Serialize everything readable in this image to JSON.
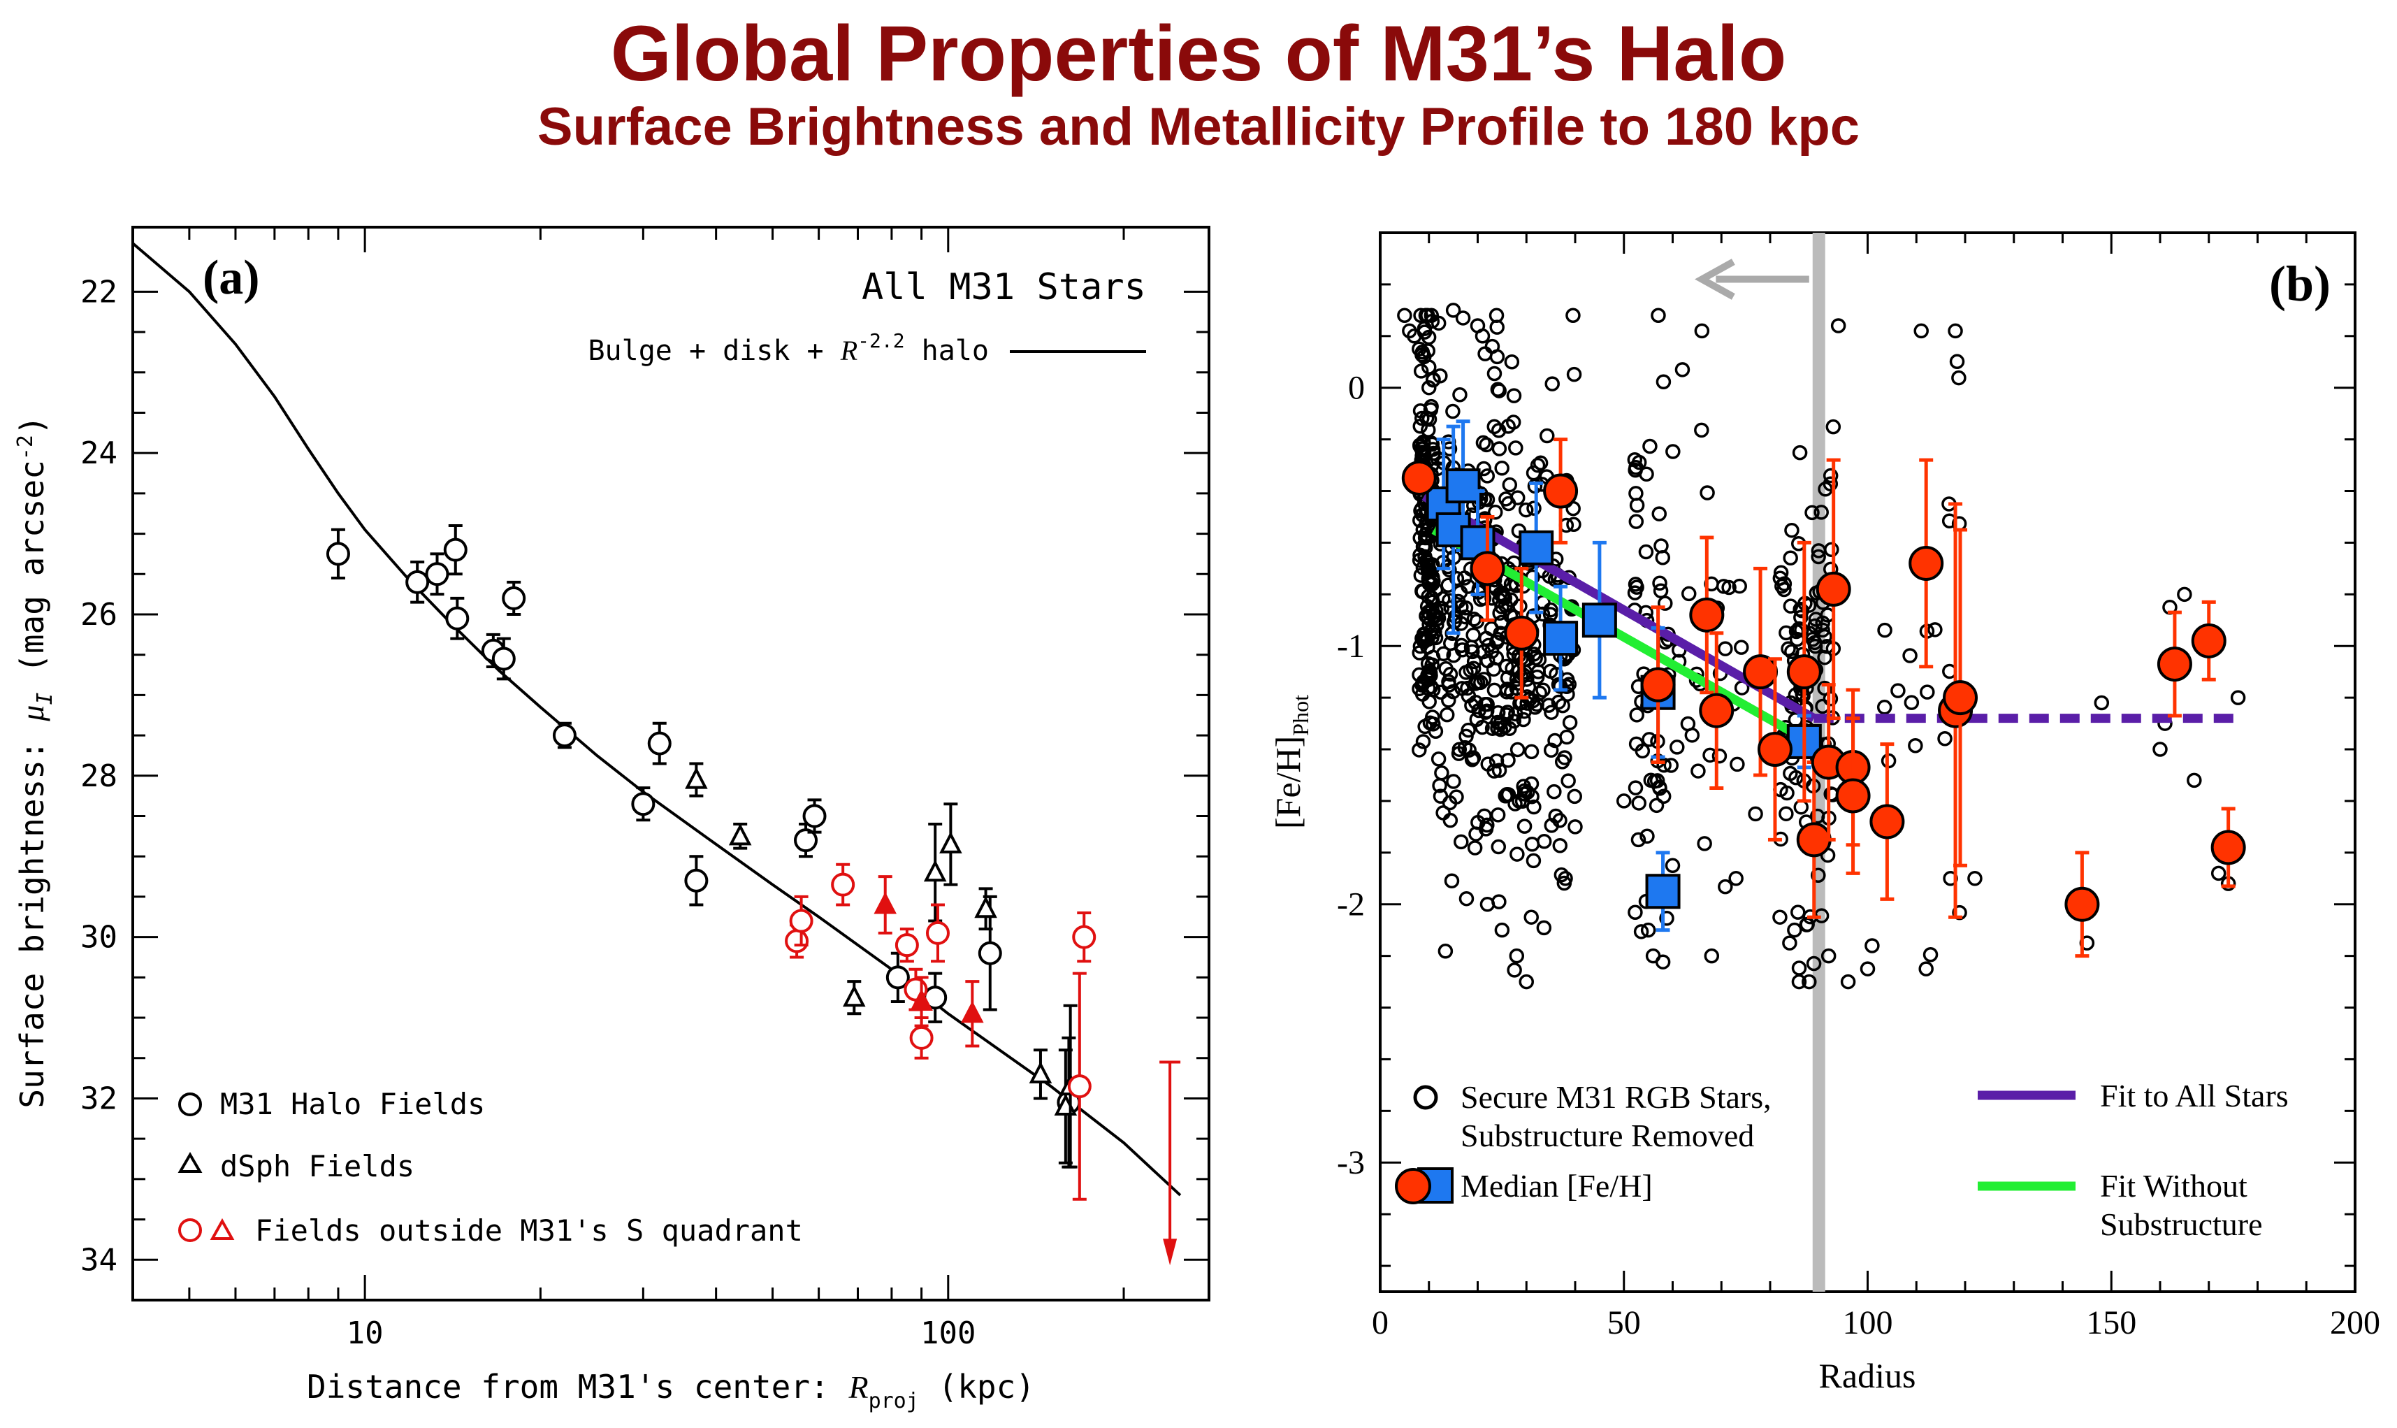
{
  "title": "Global Properties of M31’s Halo",
  "subtitle": "Surface Brightness and Metallicity  Profile to 180 kpc",
  "colors": {
    "title": "#8a0a0a",
    "black": "#000000",
    "red": "#e01010",
    "blue": "#1e78f0",
    "orange": "#ff3300",
    "purple": "#5a1ea8",
    "green": "#22ee33",
    "gray": "#bbbbbb"
  },
  "chart_data": [
    {
      "type": "scatter",
      "panel_label": "(a)",
      "annotation": "All M31 Stars",
      "model_label": "Bulge + disk + R^-2.2 halo",
      "model_label_parts": {
        "pre": "Bulge + disk + ",
        "r": "R",
        "exp": "-2.2",
        "post": " halo"
      },
      "xlabel": "Distance from M31's center: R_proj (kpc)",
      "xlabel_parts": {
        "pre": "Distance from M31's center: ",
        "r": "R",
        "sub": "proj",
        "post": " (kpc)"
      },
      "ylabel": "Surface brightness: μ_I (mag arcsec^-2)",
      "ylabel_parts": {
        "pre": "Surface brightness: ",
        "mu": "μ",
        "sub": "I",
        "post": " (mag arcsec",
        "sup": "-2",
        "end": ")"
      },
      "xscale": "log",
      "xlim": [
        4,
        280
      ],
      "ylim": [
        34.5,
        21.2
      ],
      "x_ticks": [
        10,
        100
      ],
      "x_tick_labels": [
        "10",
        "100"
      ],
      "y_ticks": [
        22,
        24,
        26,
        28,
        30,
        32,
        34
      ],
      "y_tick_labels": [
        "22",
        "24",
        "26",
        "28",
        "30",
        "32",
        "34"
      ],
      "legend": [
        {
          "label": "M31 Halo Fields",
          "marker": "circle",
          "color": "black"
        },
        {
          "label": "dSph Fields",
          "marker": "triangle",
          "color": "black"
        },
        {
          "label": "Fields outside M31's S quadrant",
          "marker": "circle+triangle",
          "color": "red"
        }
      ],
      "model_curve": [
        [
          4,
          21.4
        ],
        [
          5,
          22.0
        ],
        [
          6,
          22.65
        ],
        [
          7,
          23.3
        ],
        [
          8,
          23.95
        ],
        [
          9,
          24.5
        ],
        [
          10,
          24.95
        ],
        [
          12,
          25.6
        ],
        [
          14,
          26.1
        ],
        [
          17,
          26.7
        ],
        [
          20,
          27.15
        ],
        [
          25,
          27.75
        ],
        [
          30,
          28.2
        ],
        [
          40,
          28.85
        ],
        [
          50,
          29.35
        ],
        [
          60,
          29.75
        ],
        [
          80,
          30.4
        ],
        [
          100,
          30.95
        ],
        [
          150,
          31.85
        ],
        [
          200,
          32.55
        ],
        [
          250,
          33.2
        ]
      ],
      "series": [
        {
          "name": "M31 Halo Fields",
          "marker": "circle",
          "color": "black",
          "points": [
            [
              9,
              25.25,
              0.3
            ],
            [
              12.3,
              25.6,
              0.25
            ],
            [
              13.3,
              25.5,
              0.25
            ],
            [
              14.3,
              25.2,
              0.3
            ],
            [
              14.4,
              26.05,
              0.25
            ],
            [
              16.6,
              26.45,
              0.2
            ],
            [
              17.3,
              26.55,
              0.25
            ],
            [
              18.0,
              25.8,
              0.2
            ],
            [
              22.0,
              27.5,
              0.15
            ],
            [
              30,
              28.35,
              0.2
            ],
            [
              32,
              27.6,
              0.25
            ],
            [
              37,
              29.3,
              0.3
            ],
            [
              57,
              28.8,
              0.2
            ],
            [
              59,
              28.5,
              0.2
            ],
            [
              82,
              30.5,
              0.3
            ],
            [
              95,
              30.75,
              0.3
            ],
            [
              118,
              30.2,
              0.7
            ],
            [
              161,
              32.05,
              0.8
            ]
          ]
        },
        {
          "name": "dSph Fields",
          "marker": "triangle",
          "color": "black",
          "points": [
            [
              37,
              28.05,
              0.2
            ],
            [
              44,
              28.75,
              0.15
            ],
            [
              69,
              30.75,
              0.2
            ],
            [
              95,
              29.2,
              0.6
            ],
            [
              101,
              28.85,
              0.5
            ],
            [
              116,
              29.65,
              0.25
            ],
            [
              144,
              31.7,
              0.3
            ],
            [
              159,
              32.1,
              0.7
            ],
            [
              162,
              31.85,
              1.0
            ]
          ]
        },
        {
          "name": "Fields outside M31's S quadrant (circles)",
          "marker": "circle",
          "color": "red",
          "points": [
            [
              55,
              30.05,
              0.2
            ],
            [
              56,
              29.8,
              0.3
            ],
            [
              66,
              29.35,
              0.25
            ],
            [
              85,
              30.1,
              0.2
            ],
            [
              88,
              30.65,
              0.25
            ],
            [
              90,
              31.25,
              0.25
            ],
            [
              96,
              29.95,
              0.35
            ],
            [
              168,
              31.85,
              1.4
            ],
            [
              171,
              30.0,
              0.3
            ]
          ]
        },
        {
          "name": "Fields outside M31's S quadrant (triangles)",
          "marker": "triangle",
          "color": "red",
          "points": [
            [
              78,
              29.6,
              0.35
            ],
            [
              90,
              30.8,
              0.3
            ],
            [
              110,
              30.95,
              0.4
            ]
          ]
        }
      ],
      "upper_limit_arrow": {
        "x": 240,
        "y_from": 31.55,
        "y_to": 34.0
      }
    },
    {
      "type": "scatter",
      "panel_label": "(b)",
      "xlabel": "Radius",
      "ylabel": "[Fe/H]_Phot",
      "ylabel_parts": {
        "main": "[Fe/H]",
        "sub": "Phot"
      },
      "xlim": [
        0,
        200
      ],
      "ylim": [
        -3.5,
        0.6
      ],
      "x_ticks": [
        0,
        50,
        100,
        150,
        200
      ],
      "x_tick_labels": [
        "0",
        "50",
        "100",
        "150",
        "200"
      ],
      "y_ticks": [
        0,
        -1,
        -2,
        -3
      ],
      "y_tick_labels": [
        "0",
        "-1",
        "-2",
        "-3"
      ],
      "vertical_line_x": 90,
      "arrow": {
        "x_from": 88,
        "x_to": 66,
        "y": 0.42
      },
      "legend": [
        {
          "label_lines": [
            "Secure M31 RGB Stars,",
            "Substructure Removed"
          ],
          "marker": "open-circle"
        },
        {
          "label_lines": [
            "Median [Fe/H]"
          ],
          "marker": "red-circle+blue-square"
        },
        {
          "label_lines": [
            "Fit to All Stars"
          ],
          "marker": "purple-line"
        },
        {
          "label_lines": [
            "Fit Without",
            "Substructure"
          ],
          "marker": "green-line"
        }
      ],
      "fit_all_stars": {
        "x": [
          9,
          89
        ],
        "y": [
          -0.42,
          -1.28
        ],
        "extension": {
          "x": [
            89,
            177
          ],
          "y": -1.28
        }
      },
      "fit_without_substructure": {
        "x": [
          11,
          88
        ],
        "y": [
          -0.55,
          -1.37
        ]
      },
      "median_red_circles": [
        [
          8,
          -0.35,
          0.05
        ],
        [
          22,
          -0.7,
          0.2
        ],
        [
          29,
          -0.95,
          0.25
        ],
        [
          37,
          -0.4,
          0.2
        ],
        [
          57,
          -1.15,
          0.3
        ],
        [
          67,
          -0.88,
          0.3
        ],
        [
          69,
          -1.25,
          0.3
        ],
        [
          78,
          -1.1,
          0.4
        ],
        [
          81,
          -1.4,
          0.35
        ],
        [
          87,
          -1.1,
          0.5
        ],
        [
          89,
          -1.75,
          0.3
        ],
        [
          92,
          -1.45,
          0.3
        ],
        [
          93,
          -0.78,
          0.5
        ],
        [
          97,
          -1.47,
          0.3
        ],
        [
          97,
          -1.58,
          0.3
        ],
        [
          104,
          -1.68,
          0.3
        ],
        [
          112,
          -0.68,
          0.4
        ],
        [
          118,
          -1.25,
          0.8
        ],
        [
          119,
          -1.2,
          0.65
        ],
        [
          144,
          -2.0,
          0.2
        ],
        [
          163,
          -1.07,
          0.2
        ],
        [
          170,
          -0.98,
          0.15
        ],
        [
          174,
          -1.78,
          0.15
        ]
      ],
      "median_blue_squares": [
        [
          13,
          -0.45,
          0.25
        ],
        [
          15,
          -0.55,
          0.4
        ],
        [
          17,
          -0.38,
          0.25
        ],
        [
          20,
          -0.6,
          0.2
        ],
        [
          32,
          -0.62,
          0.25
        ],
        [
          37,
          -0.97,
          0.2
        ],
        [
          45,
          -0.9,
          0.3
        ],
        [
          57,
          -1.18,
          0.25
        ],
        [
          58,
          -1.95,
          0.15
        ],
        [
          87,
          -1.37,
          0.1
        ]
      ],
      "stars_seed": 31,
      "stars": [
        [
          5,
          0.28
        ],
        [
          6,
          0.22
        ],
        [
          7,
          0.2
        ],
        [
          8,
          0.15
        ],
        [
          9,
          0.12
        ],
        [
          10,
          0.08
        ],
        [
          10,
          0.0
        ],
        [
          12,
          0.25
        ],
        [
          15,
          0.3
        ],
        [
          17,
          0.27
        ],
        [
          20,
          0.24
        ],
        [
          21,
          0.2
        ],
        [
          23,
          0.16
        ],
        [
          24,
          0.12
        ],
        [
          27,
          0.1
        ],
        [
          25,
          -2.1
        ],
        [
          22,
          -2.0
        ],
        [
          28,
          -2.2
        ],
        [
          30,
          -2.3
        ],
        [
          31,
          -2.05
        ],
        [
          40,
          -1.7
        ],
        [
          38,
          -1.9
        ],
        [
          50,
          -1.6
        ],
        [
          55,
          -2.1
        ],
        [
          56,
          -2.2
        ],
        [
          60,
          -1.85
        ],
        [
          62,
          0.07
        ],
        [
          66,
          0.22
        ],
        [
          68,
          -2.2
        ],
        [
          73,
          -1.9
        ],
        [
          77,
          -1.65
        ],
        [
          82,
          -2.05
        ],
        [
          84,
          -2.15
        ],
        [
          85,
          -2.1
        ],
        [
          88,
          -2.3
        ],
        [
          92,
          -2.2
        ],
        [
          94,
          0.24
        ],
        [
          96,
          -2.3
        ],
        [
          100,
          -2.25
        ],
        [
          111,
          0.22
        ],
        [
          118,
          0.22
        ],
        [
          112,
          -2.25
        ],
        [
          117,
          -1.9
        ],
        [
          122,
          -1.9
        ],
        [
          145,
          -2.15
        ],
        [
          148,
          -1.22
        ],
        [
          160,
          -1.4
        ],
        [
          161,
          -1.3
        ],
        [
          162,
          -0.85
        ],
        [
          165,
          -0.8
        ],
        [
          167,
          -1.52
        ],
        [
          172,
          -1.88
        ],
        [
          176,
          -1.2
        ],
        [
          174,
          -1.92
        ]
      ]
    }
  ]
}
